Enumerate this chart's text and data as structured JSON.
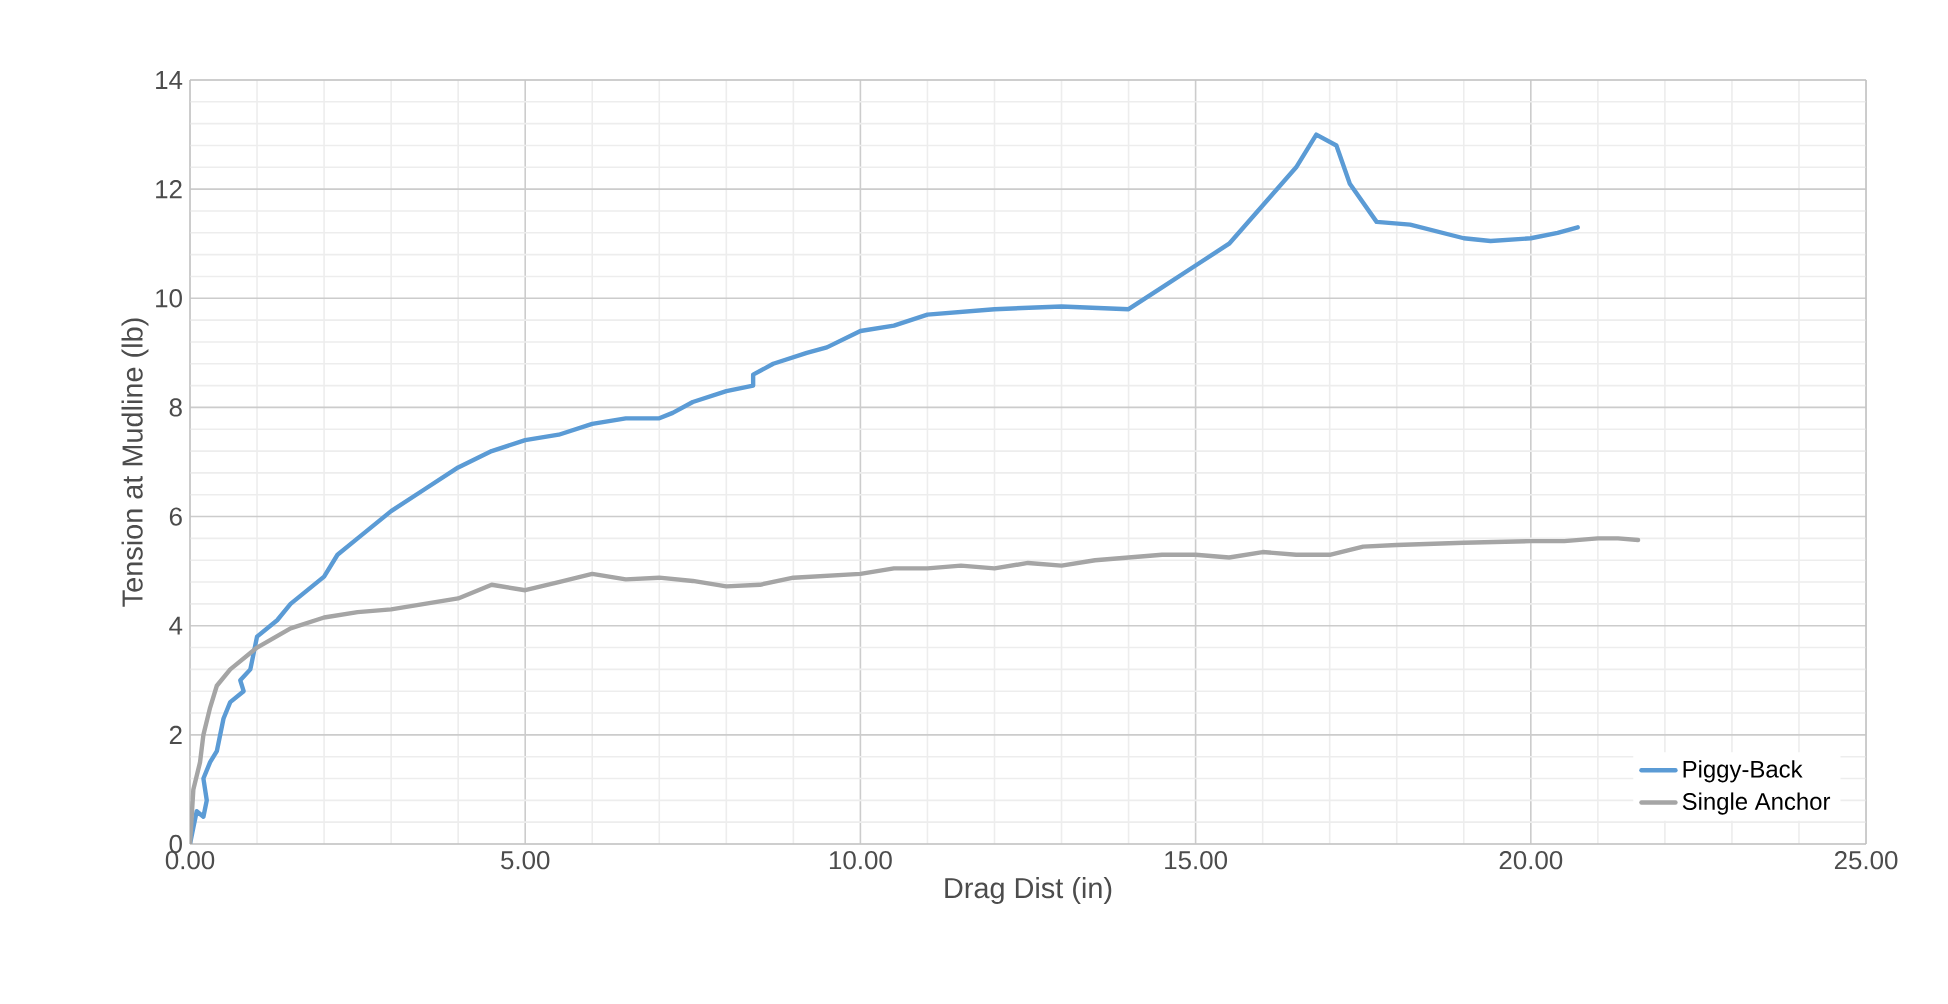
{
  "chart_data": {
    "type": "line",
    "xlabel": "Drag Dist (in)",
    "ylabel": "Tension at Mudline (lb)",
    "xlim": [
      0,
      25
    ],
    "ylim": [
      0,
      14
    ],
    "xticks": [
      {
        "value": 0,
        "label": "0.00"
      },
      {
        "value": 5,
        "label": "5.00"
      },
      {
        "value": 10,
        "label": "10.00"
      },
      {
        "value": 15,
        "label": "15.00"
      },
      {
        "value": 20,
        "label": "20.00"
      },
      {
        "value": 25,
        "label": "25.00"
      }
    ],
    "yticks": [
      0,
      2,
      4,
      6,
      8,
      10,
      12,
      14
    ],
    "grid": true,
    "legend": "bottom right",
    "series": [
      {
        "name": "Piggy-Back",
        "color": "#5b9bd5",
        "x": [
          0,
          0.05,
          0.1,
          0.2,
          0.25,
          0.2,
          0.3,
          0.4,
          0.5,
          0.6,
          0.8,
          0.75,
          0.9,
          1.0,
          1.3,
          1.5,
          2.0,
          2.2,
          2.5,
          3.0,
          3.5,
          4.0,
          4.5,
          5.0,
          5.5,
          6.0,
          6.5,
          7.0,
          7.2,
          7.5,
          8.0,
          8.4,
          8.4,
          8.7,
          9.2,
          9.5,
          10,
          10.5,
          11,
          12,
          13,
          14,
          14.5,
          15,
          15.5,
          16,
          16.5,
          16.8,
          17.1,
          17.3,
          17.7,
          18.2,
          19,
          19.4,
          20,
          20.4,
          20.7
        ],
        "values": [
          0,
          0.3,
          0.6,
          0.5,
          0.8,
          1.2,
          1.5,
          1.7,
          2.3,
          2.6,
          2.8,
          3.0,
          3.2,
          3.8,
          4.1,
          4.4,
          4.9,
          5.3,
          5.6,
          6.1,
          6.5,
          6.9,
          7.2,
          7.4,
          7.5,
          7.7,
          7.8,
          7.8,
          7.9,
          8.1,
          8.3,
          8.4,
          8.6,
          8.8,
          9.0,
          9.1,
          9.4,
          9.5,
          9.7,
          9.8,
          9.85,
          9.8,
          10.2,
          10.6,
          11.0,
          11.7,
          12.4,
          13.0,
          12.8,
          12.1,
          11.4,
          11.35,
          11.1,
          11.05,
          11.1,
          11.2,
          11.3
        ]
      },
      {
        "name": "Single Anchor",
        "color": "#a5a5a5",
        "x": [
          0,
          0.05,
          0.15,
          0.2,
          0.3,
          0.4,
          0.6,
          0.8,
          1.0,
          1.5,
          2.0,
          2.5,
          3.0,
          3.5,
          4.0,
          4.5,
          5.0,
          5.5,
          6.0,
          6.5,
          7.0,
          7.5,
          8.0,
          8.5,
          9.0,
          10,
          10.5,
          11,
          11.5,
          12,
          12.5,
          13,
          13.5,
          14,
          14.5,
          15,
          15.5,
          16,
          16.5,
          17,
          17.5,
          18,
          19,
          20,
          20.5,
          21,
          21.3,
          21.6
        ],
        "values": [
          0,
          1.0,
          1.5,
          2.0,
          2.5,
          2.9,
          3.2,
          3.4,
          3.6,
          3.95,
          4.15,
          4.25,
          4.3,
          4.4,
          4.5,
          4.75,
          4.65,
          4.8,
          4.95,
          4.85,
          4.88,
          4.82,
          4.72,
          4.75,
          4.88,
          4.95,
          5.05,
          5.05,
          5.1,
          5.05,
          5.15,
          5.1,
          5.2,
          5.25,
          5.3,
          5.3,
          5.25,
          5.35,
          5.3,
          5.3,
          5.45,
          5.48,
          5.52,
          5.55,
          5.55,
          5.6,
          5.6,
          5.57
        ]
      }
    ]
  }
}
